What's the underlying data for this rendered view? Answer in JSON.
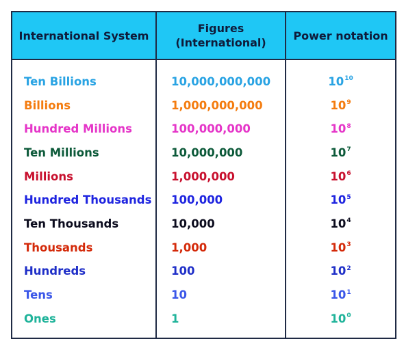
{
  "header": {
    "col1": "International System",
    "col2_line1": "Figures",
    "col2_line2": "(International)",
    "col3": "Power notation"
  },
  "rows": [
    {
      "name": "Ten Billions",
      "figure": "10,000,000,000",
      "base": "10",
      "exp": "10",
      "color": "#29a3e3"
    },
    {
      "name": "Billions",
      "figure": "1,000,000,000",
      "base": "10",
      "exp": "9",
      "color": "#f47c0f"
    },
    {
      "name": "Hundred Millions",
      "figure": "100,000,000",
      "base": "10",
      "exp": "8",
      "color": "#e535c8"
    },
    {
      "name": "Ten Millions",
      "figure": "10,000,000",
      "base": "10",
      "exp": "7",
      "color": "#0d5a3a"
    },
    {
      "name": "Millions",
      "figure": "1,000,000",
      "base": "10",
      "exp": "6",
      "color": "#c8102e"
    },
    {
      "name": "Hundred Thousands",
      "figure": "100,000",
      "base": "10",
      "exp": "5",
      "color": "#1e24e0"
    },
    {
      "name": "Ten Thousands",
      "figure": "10,000",
      "base": "10",
      "exp": "4",
      "color": "#0c0c1e"
    },
    {
      "name": "Thousands",
      "figure": "1,000",
      "base": "10",
      "exp": "3",
      "color": "#d42a0a"
    },
    {
      "name": "Hundreds",
      "figure": "100",
      "base": "10",
      "exp": "2",
      "color": "#1f2fc8"
    },
    {
      "name": "Tens",
      "figure": "10",
      "base": "10",
      "exp": "1",
      "color": "#3a56e8"
    },
    {
      "name": "Ones",
      "figure": "1",
      "base": "10",
      "exp": "0",
      "color": "#1fb39a"
    }
  ]
}
